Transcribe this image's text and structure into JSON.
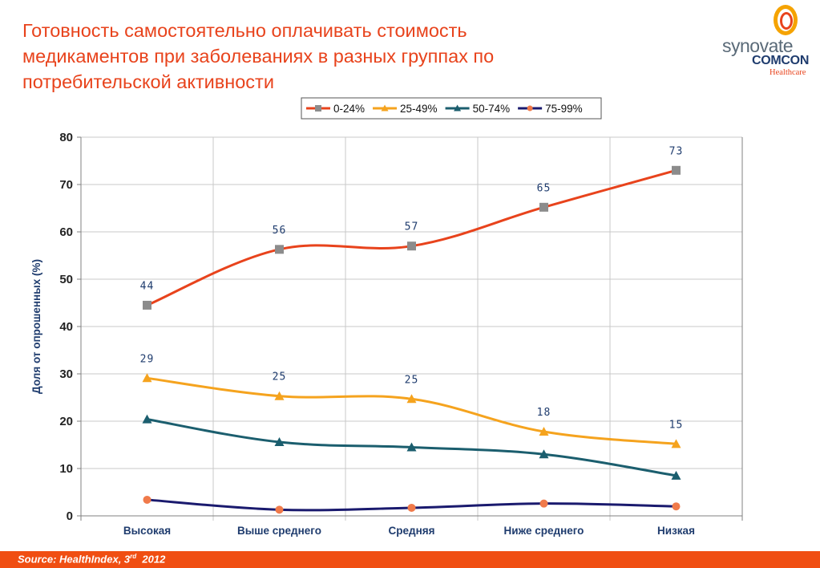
{
  "slide": {
    "title": "Готовность самостоятельно оплачивать стоимость медикаментов при заболеваниях в разных группах по потребительской активности"
  },
  "logo": {
    "brand": "synovate",
    "sub": "COMCON",
    "tag": "Healthcare"
  },
  "footer": {
    "source_prefix": "Source: HealthIndex, 3",
    "source_sup": "rd",
    "source_year": "2012"
  },
  "colors": {
    "accent": "#e8431c",
    "footer_bg": "#f04e12",
    "axis_text": "#1f3c6e"
  },
  "chart_data": {
    "type": "line",
    "categories": [
      "Высокая",
      "Выше среднего",
      "Средняя",
      "Ниже среднего",
      "Низкая"
    ],
    "ylabel": "Доля от опрошенных (%)",
    "xlabel": "",
    "ylim": [
      0,
      80
    ],
    "yticks": [
      0,
      10,
      20,
      30,
      40,
      50,
      60,
      70,
      80
    ],
    "grid": true,
    "legend_position": "top",
    "series": [
      {
        "name": "0-24%",
        "values": [
          44.5,
          56.3,
          57.0,
          65.2,
          73.0
        ],
        "labels": [
          "44",
          "56",
          "57",
          "65",
          "73"
        ],
        "line_color": "#e8431c",
        "marker": "square",
        "marker_color": "#8c8c8c"
      },
      {
        "name": "25-49%",
        "values": [
          29.1,
          25.3,
          24.7,
          17.8,
          15.2
        ],
        "labels": [
          "29",
          "25",
          "25",
          "18",
          "15"
        ],
        "line_color": "#f5a31e",
        "marker": "triangle",
        "marker_color": "#f5a31e"
      },
      {
        "name": "50-74%",
        "values": [
          20.4,
          15.6,
          14.5,
          13.0,
          8.5
        ],
        "labels": [],
        "line_color": "#1b5e6e",
        "marker": "triangle",
        "marker_color": "#1b5e6e"
      },
      {
        "name": "75-99%",
        "values": [
          3.4,
          1.3,
          1.7,
          2.6,
          2.0
        ],
        "labels": [],
        "line_color": "#1a1a6e",
        "marker": "circle",
        "marker_color": "#f07a4a"
      }
    ]
  }
}
